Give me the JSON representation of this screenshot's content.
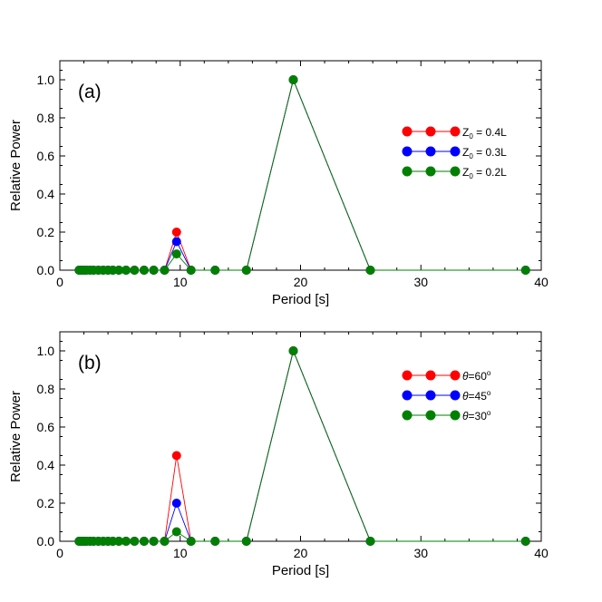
{
  "chart_data": [
    {
      "type": "line",
      "panel_label": "(a)",
      "xlabel": "Period [s]",
      "ylabel": "Relative Power",
      "xlim": [
        0,
        40
      ],
      "ylim": [
        0,
        1.1
      ],
      "xticks": [
        0,
        10,
        20,
        30,
        40
      ],
      "xtick_labels": [
        "0",
        "10",
        "20",
        "30",
        "40"
      ],
      "yticks": [
        0,
        0.2,
        0.4,
        0.6,
        0.8,
        1.0
      ],
      "ytick_labels": [
        "0.0",
        "0.2",
        "0.4",
        "0.6",
        "0.8",
        "1.0"
      ],
      "x": [
        1.6,
        1.8,
        2.0,
        2.2,
        2.5,
        2.8,
        3.2,
        3.6,
        4.0,
        4.4,
        4.9,
        5.5,
        6.2,
        7.0,
        7.8,
        8.7,
        9.7,
        10.9,
        12.9,
        15.5,
        19.4,
        25.8,
        38.7
      ],
      "series": [
        {
          "name_main": "Z",
          "name_sub": "0",
          "name_rest": " = 0.4L",
          "color": "#ff0000",
          "values": [
            0,
            0,
            0,
            0,
            0,
            0,
            0,
            0,
            0,
            0,
            0,
            0,
            0,
            0,
            0,
            0,
            0.2,
            0,
            0,
            0,
            1.0,
            0,
            0
          ]
        },
        {
          "name_main": "Z",
          "name_sub": "0",
          "name_rest": " = 0.3L",
          "color": "#0000ff",
          "values": [
            0,
            0,
            0,
            0,
            0,
            0,
            0,
            0,
            0,
            0,
            0,
            0,
            0,
            0,
            0,
            0,
            0.15,
            0,
            0,
            0,
            1.0,
            0,
            0
          ]
        },
        {
          "name_main": "Z",
          "name_sub": "0",
          "name_rest": " = 0.2L",
          "color": "#008000",
          "values": [
            0,
            0,
            0,
            0,
            0,
            0,
            0,
            0,
            0,
            0,
            0,
            0,
            0,
            0,
            0,
            0,
            0.085,
            0,
            0,
            0,
            1.0,
            0,
            0
          ]
        }
      ]
    },
    {
      "type": "line",
      "panel_label": "(b)",
      "xlabel": "Period [s]",
      "ylabel": "Relative Power",
      "xlim": [
        0,
        40
      ],
      "ylim": [
        0,
        1.1
      ],
      "xticks": [
        0,
        10,
        20,
        30,
        40
      ],
      "xtick_labels": [
        "0",
        "10",
        "20",
        "30",
        "40"
      ],
      "yticks": [
        0,
        0.2,
        0.4,
        0.6,
        0.8,
        1.0
      ],
      "ytick_labels": [
        "0.0",
        "0.2",
        "0.4",
        "0.6",
        "0.8",
        "1.0"
      ],
      "x": [
        1.6,
        1.8,
        2.0,
        2.2,
        2.5,
        2.8,
        3.2,
        3.6,
        4.0,
        4.4,
        4.9,
        5.5,
        6.2,
        7.0,
        7.8,
        8.7,
        9.7,
        10.9,
        12.9,
        15.5,
        19.4,
        25.8,
        38.7
      ],
      "series": [
        {
          "name_main": "θ",
          "name_rest": "=60",
          "name_sup": "o",
          "color": "#ff0000",
          "values": [
            0,
            0,
            0,
            0,
            0,
            0,
            0,
            0,
            0,
            0,
            0,
            0,
            0,
            0,
            0,
            0,
            0.45,
            0,
            0,
            0,
            1.0,
            0,
            0
          ]
        },
        {
          "name_main": "θ",
          "name_rest": "=45",
          "name_sup": "o",
          "color": "#0000ff",
          "values": [
            0,
            0,
            0,
            0,
            0,
            0,
            0,
            0,
            0,
            0,
            0,
            0,
            0,
            0,
            0,
            0,
            0.2,
            0,
            0,
            0,
            1.0,
            0,
            0
          ]
        },
        {
          "name_main": "θ",
          "name_rest": "=30",
          "name_sup": "o",
          "color": "#008000",
          "values": [
            0,
            0,
            0,
            0,
            0,
            0,
            0,
            0,
            0,
            0,
            0,
            0,
            0,
            0,
            0,
            0,
            0.05,
            0,
            0,
            0,
            1.0,
            0,
            0
          ]
        }
      ]
    }
  ]
}
